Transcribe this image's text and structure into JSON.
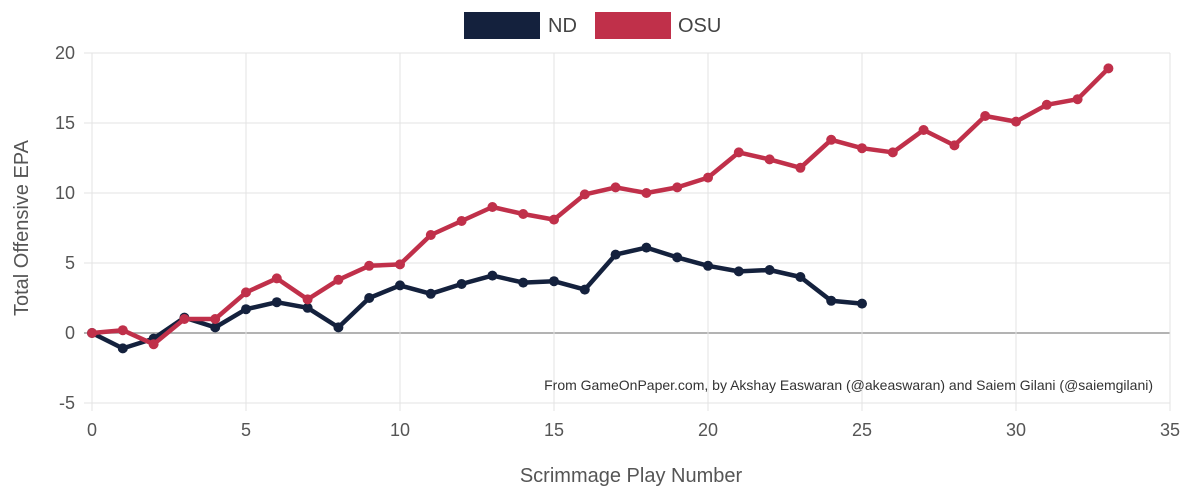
{
  "chart_data": {
    "type": "line",
    "xlabel": "Scrimmage Play Number",
    "ylabel": "Total Offensive EPA",
    "xlim": [
      0,
      35
    ],
    "ylim": [
      -5,
      20
    ],
    "x_ticks": [
      0,
      5,
      10,
      15,
      20,
      25,
      30,
      35
    ],
    "y_ticks": [
      -5,
      0,
      5,
      10,
      15,
      20
    ],
    "grid": true,
    "legend_position": "top-center",
    "annotation": "From GameOnPaper.com, by Akshay Easwaran (@akeaswaran) and Saiem Gilani (@saiemgilani)",
    "series": [
      {
        "name": "ND",
        "color": "#14213d",
        "x": [
          0,
          1,
          2,
          3,
          4,
          5,
          6,
          7,
          8,
          9,
          10,
          11,
          12,
          13,
          14,
          15,
          16,
          17,
          18,
          19,
          20,
          21,
          22,
          23,
          24,
          25
        ],
        "values": [
          0,
          -1.1,
          -0.4,
          1.1,
          0.4,
          1.7,
          2.2,
          1.8,
          0.4,
          2.5,
          3.4,
          2.8,
          3.5,
          4.1,
          3.6,
          3.7,
          3.1,
          5.6,
          6.1,
          5.4,
          4.8,
          4.4,
          4.5,
          4.0,
          2.3,
          2.1
        ]
      },
      {
        "name": "OSU",
        "color": "#c0304a",
        "x": [
          0,
          1,
          2,
          3,
          4,
          5,
          6,
          7,
          8,
          9,
          10,
          11,
          12,
          13,
          14,
          15,
          16,
          17,
          18,
          19,
          20,
          21,
          22,
          23,
          24,
          25,
          26,
          27,
          28,
          29,
          30,
          31,
          32,
          33
        ],
        "values": [
          0,
          0.2,
          -0.8,
          1.0,
          1.0,
          2.9,
          3.9,
          2.4,
          3.8,
          4.8,
          4.9,
          7.0,
          8.0,
          9.0,
          8.5,
          8.1,
          9.9,
          10.4,
          10.0,
          10.4,
          11.1,
          12.9,
          12.4,
          11.8,
          13.8,
          13.2,
          12.9,
          14.5,
          13.4,
          15.5,
          15.1,
          16.3,
          16.7,
          18.9
        ]
      }
    ]
  }
}
